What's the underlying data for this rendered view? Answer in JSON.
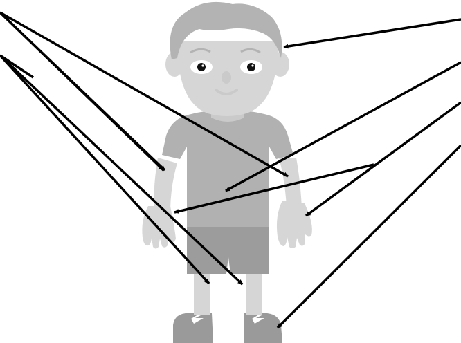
{
  "diagram": {
    "description_visible_text": "",
    "colors": {
      "background": "#ffffff",
      "skin": "#d6d6d6",
      "skin_shadow": "#cacaca",
      "hair": "#b3b3b3",
      "shirt": "#b1b1b1",
      "shorts": "#9c9c9c",
      "shoes": "#9a9a9a",
      "eye_white": "#ffffff",
      "pupil": "#111111",
      "arrow": "#000000"
    },
    "figure": {
      "subject": "boy",
      "parts": [
        "hair",
        "head",
        "ears",
        "eyes",
        "nose",
        "mouth",
        "neck",
        "shirt",
        "sleeves",
        "arms",
        "hands",
        "shorts",
        "legs",
        "shoes"
      ]
    },
    "arrows": {
      "count": 10,
      "targets": [
        "left-arm",
        "right-shoulder",
        "right-leg",
        "left-leg",
        "hair",
        "shirt-center",
        "left-hand",
        "right-hand",
        "right-shoe",
        "left-shoulder"
      ],
      "label_text": []
    }
  }
}
